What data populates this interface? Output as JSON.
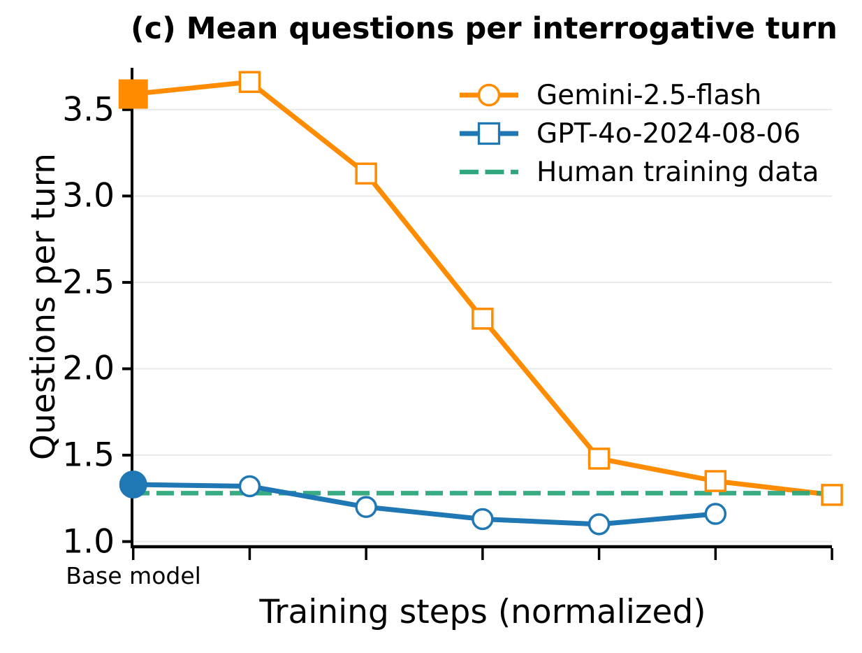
{
  "chart_data": {
    "type": "line",
    "title": "(c) Mean questions per interrogative turn",
    "xlabel": "Training steps (normalized)",
    "ylabel": "Questions per turn",
    "xtick_labels": [
      "Base model",
      "",
      "",
      "",
      "",
      "",
      ""
    ],
    "x_positions": [
      0,
      1,
      2,
      3,
      4,
      5,
      6
    ],
    "ylim": [
      0.97,
      3.75
    ],
    "yticks": [
      3.5,
      3.0,
      2.5,
      2.0,
      1.5,
      1.0
    ],
    "grid": "horizontal",
    "grid_color": "#e9e9e9",
    "axis_color": "#000000",
    "legend_position": "upper right, no frame",
    "series": [
      {
        "name": "Gemini-2.5-flash",
        "type": "line",
        "color": "#ff8c00",
        "marker": "square",
        "first_marker_filled": true,
        "x": [
          0,
          1,
          2,
          3,
          4,
          5,
          6
        ],
        "values": [
          3.59,
          3.66,
          3.13,
          2.29,
          1.48,
          1.35,
          1.27
        ]
      },
      {
        "name": "GPT-4o-2024-08-06",
        "type": "line",
        "color": "#1f77b4",
        "marker": "circle",
        "first_marker_filled": true,
        "x": [
          0,
          1,
          2,
          3,
          4,
          5
        ],
        "values": [
          1.33,
          1.32,
          1.2,
          1.13,
          1.1,
          1.16
        ]
      },
      {
        "name": "Human training data",
        "type": "hline",
        "style": "dashed",
        "color": "#2ea77c",
        "value": 1.28
      }
    ],
    "legend": [
      {
        "label": "Gemini-2.5-flash",
        "color": "#ff8c00",
        "marker": "circle-on-line"
      },
      {
        "label": "GPT-4o-2024-08-06",
        "color": "#1f77b4",
        "marker": "square-on-line"
      },
      {
        "label": "Human training data",
        "color": "#2ea77c",
        "marker": "dashed-line"
      }
    ]
  }
}
